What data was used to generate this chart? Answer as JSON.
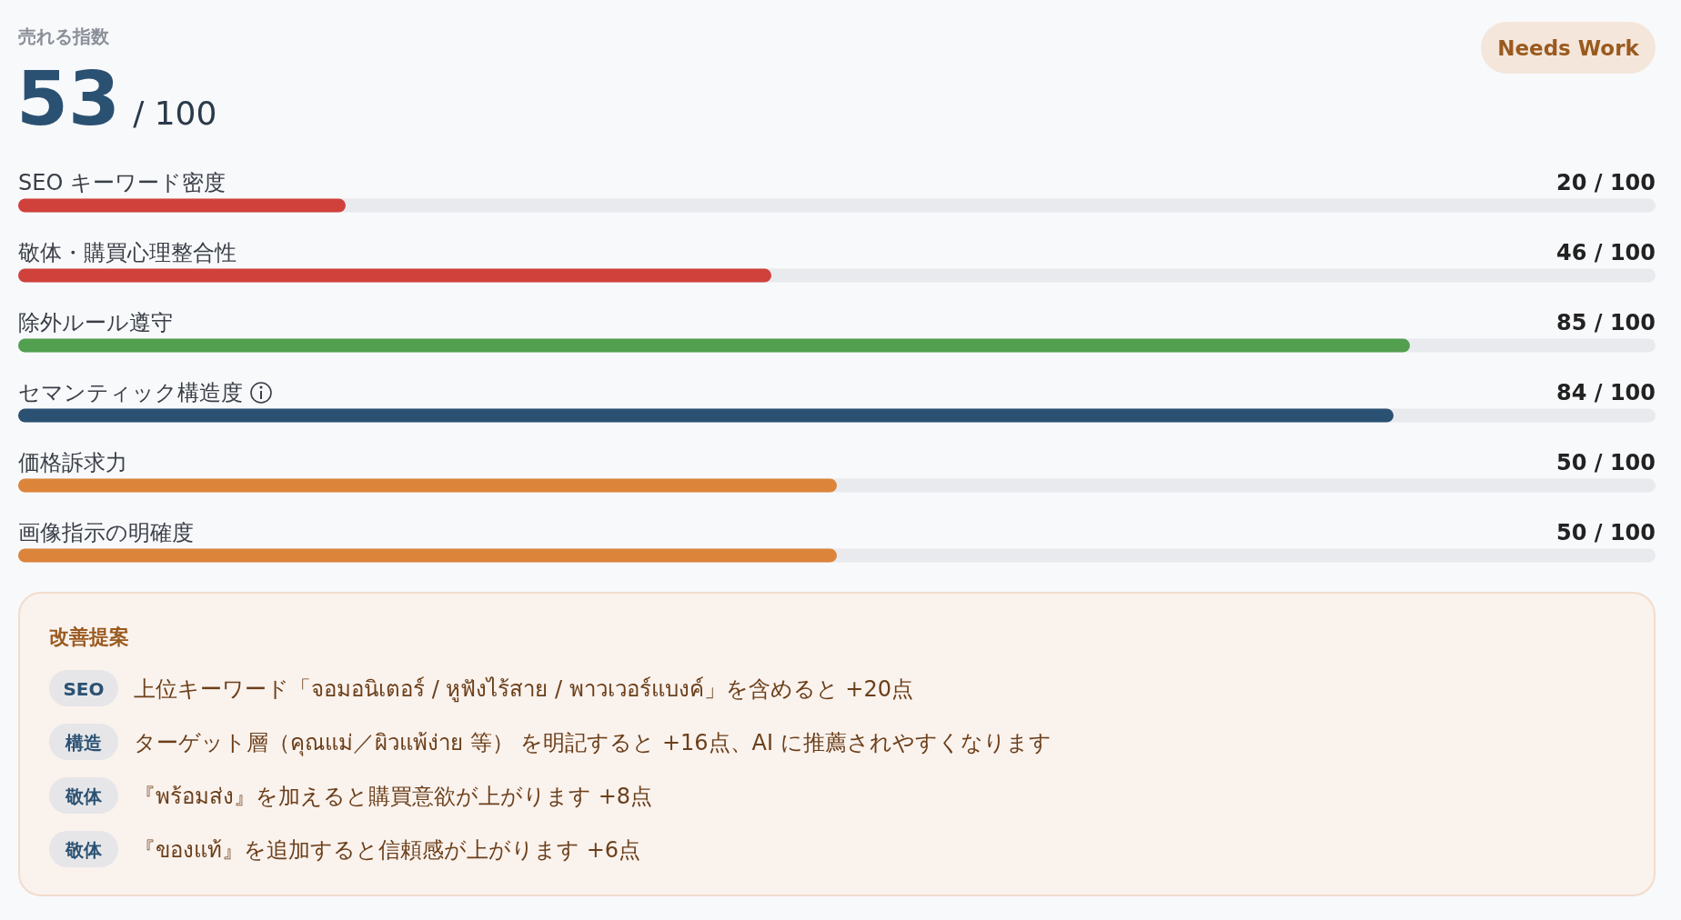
{
  "chart_data": {
    "type": "bar",
    "orientation": "horizontal",
    "title": "売れる指数",
    "subtitle": "53 / 100",
    "categories": [
      "SEO キーワード密度",
      "敬体・購買心理整合性",
      "除外ルール遵守",
      "セマンティック構造度",
      "価格訴求力",
      "画像指示の明確度"
    ],
    "values": [
      20,
      46,
      85,
      84,
      50,
      50
    ],
    "colors": [
      "#d0413c",
      "#d0413c",
      "#52a04f",
      "#2b5172",
      "#dc843a",
      "#dc843a"
    ],
    "value_labels": [
      "20 / 100",
      "46 / 100",
      "85 / 100",
      "84 / 100",
      "50 / 100",
      "50 / 100"
    ],
    "xlim": [
      0,
      100
    ],
    "annotations": [
      "Needs Work",
      "改善提案",
      "SEO",
      "上位キーワード「จอมอนิเตอร์ / หูฟังไร้สาย / พาวเวอร์แบงค์」を含めると +20点",
      "構造",
      "ターゲット層（คุณแม่／ผิวแพ้ง่าย 等） を明記すると +16点、AI に推薦されやすくなります",
      "敬体",
      "『พร้อมส่ง』を加えると購買意欲が上がります +8点",
      "敬体",
      "『ของแท้』を追加すると信頼感が上がります +6点"
    ]
  }
}
